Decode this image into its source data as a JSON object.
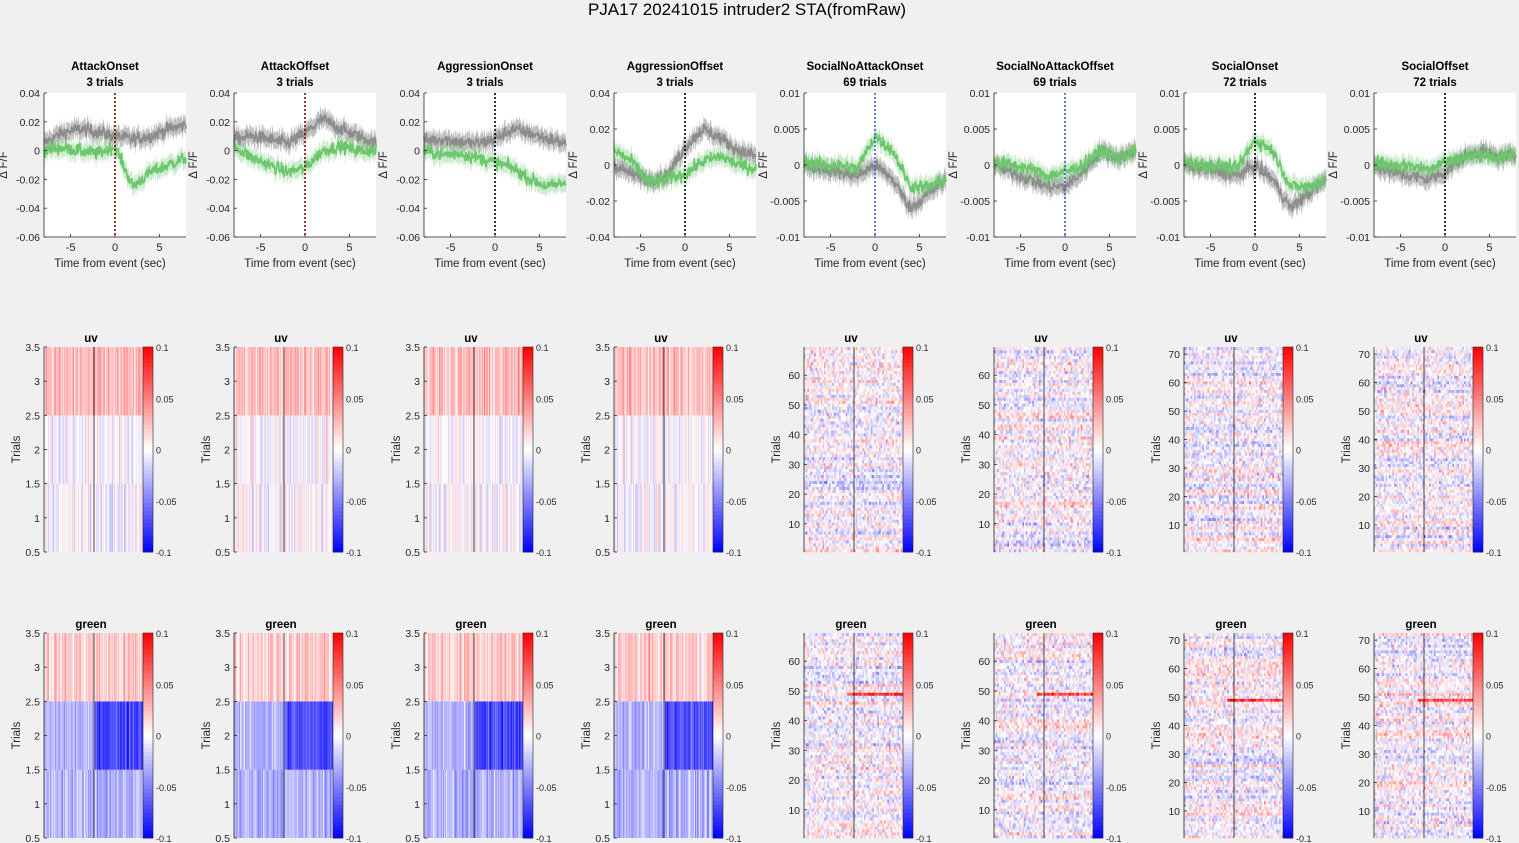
{
  "figure": {
    "suptitle": "PJA17 20241015  intruder2 STA(fromRaw)",
    "colors": {
      "background": "#f0f0f0",
      "axes_bg": "#ffffff",
      "green_trace": "#6cc76c",
      "uv_trace": "#8c8c8c",
      "colormap_low": "#0000ff",
      "colormap_mid": "#ffffff",
      "colormap_high": "#ff0000",
      "event_line_attack": "#8b0000",
      "event_line_social_no_attack": "#3a5bd9",
      "event_line_default": "#000000"
    }
  },
  "chart_data": [
    {
      "type": "line",
      "column": 0,
      "row": "trace",
      "title": "AttackOnset",
      "subtitle": "3 trials",
      "xlabel": "Time from event (sec)",
      "ylabel": "Δ F/F",
      "xlim": [
        -8,
        8
      ],
      "ylim": [
        -0.06,
        0.04
      ],
      "xticks": [
        -5,
        0,
        5
      ],
      "yticks": [
        -0.06,
        -0.04,
        -0.02,
        0,
        0.02,
        0.04
      ],
      "ytick_labels": [
        "-0.06",
        "-0.04",
        "-0.02",
        "0",
        "0.02",
        "0.04"
      ],
      "event_line": {
        "x": 0,
        "style": "dotted",
        "color": "#8b0000"
      },
      "series": [
        {
          "color": "#8c8c8c",
          "x": [
            -8,
            -6,
            -4,
            -2,
            0,
            2,
            4,
            6,
            8
          ],
          "y": [
            0.005,
            0.012,
            0.015,
            0.013,
            0.01,
            0.008,
            0.01,
            0.015,
            0.018
          ]
        },
        {
          "color": "#6cc76c",
          "x": [
            -8,
            -6,
            -4,
            -2,
            0,
            2,
            4,
            6,
            8
          ],
          "y": [
            0.0,
            0.002,
            0.0,
            -0.002,
            0.003,
            -0.025,
            -0.015,
            -0.01,
            -0.005
          ]
        }
      ]
    },
    {
      "type": "line",
      "column": 1,
      "row": "trace",
      "title": "AttackOffset",
      "subtitle": "3 trials",
      "xlabel": "Time from event (sec)",
      "ylabel": "Δ F/F",
      "xlim": [
        -8,
        8
      ],
      "ylim": [
        -0.06,
        0.04
      ],
      "xticks": [
        -5,
        0,
        5
      ],
      "yticks": [
        -0.06,
        -0.04,
        -0.02,
        0,
        0.02,
        0.04
      ],
      "ytick_labels": [
        "-0.06",
        "-0.04",
        "-0.02",
        "0",
        "0.02",
        "0.04"
      ],
      "event_line": {
        "x": 0,
        "style": "dotted",
        "color": "#8b0000"
      },
      "series": [
        {
          "color": "#8c8c8c",
          "x": [
            -8,
            -6,
            -4,
            -2,
            0,
            2,
            4,
            6,
            8
          ],
          "y": [
            0.008,
            0.01,
            0.008,
            0.005,
            0.012,
            0.022,
            0.015,
            0.01,
            0.005
          ]
        },
        {
          "color": "#6cc76c",
          "x": [
            -8,
            -6,
            -4,
            -2,
            0,
            2,
            4,
            6,
            8
          ],
          "y": [
            0.003,
            -0.005,
            -0.01,
            -0.015,
            -0.012,
            0.0,
            0.003,
            0.0,
            0.0
          ]
        }
      ]
    },
    {
      "type": "line",
      "column": 2,
      "row": "trace",
      "title": "AggressionOnset",
      "subtitle": "3 trials",
      "xlabel": "Time from event (sec)",
      "ylabel": "Δ F/F",
      "xlim": [
        -8,
        8
      ],
      "ylim": [
        -0.06,
        0.04
      ],
      "xticks": [
        -5,
        0,
        5
      ],
      "yticks": [
        -0.06,
        -0.04,
        -0.02,
        0,
        0.02,
        0.04
      ],
      "ytick_labels": [
        "-0.06",
        "-0.04",
        "-0.02",
        "0",
        "0.02",
        "0.04"
      ],
      "event_line": {
        "x": 0,
        "style": "dotted",
        "color": "#000000"
      },
      "series": [
        {
          "color": "#8c8c8c",
          "x": [
            -8,
            -6,
            -4,
            -2,
            0,
            2,
            4,
            6,
            8
          ],
          "y": [
            0.007,
            0.008,
            0.006,
            0.005,
            0.008,
            0.015,
            0.012,
            0.008,
            0.005
          ]
        },
        {
          "color": "#6cc76c",
          "x": [
            -8,
            -6,
            -4,
            -2,
            0,
            2,
            4,
            6,
            8
          ],
          "y": [
            0.0,
            -0.003,
            -0.002,
            -0.005,
            -0.008,
            -0.012,
            -0.02,
            -0.025,
            -0.022
          ]
        }
      ]
    },
    {
      "type": "line",
      "column": 3,
      "row": "trace",
      "title": "AggressionOffset",
      "subtitle": "3 trials",
      "xlabel": "Time from event (sec)",
      "ylabel": "Δ F/F",
      "xlim": [
        -8,
        8
      ],
      "ylim": [
        -0.04,
        0.04
      ],
      "xticks": [
        -5,
        0,
        5
      ],
      "yticks": [
        -0.04,
        -0.02,
        0,
        0.02,
        0.04
      ],
      "ytick_labels": [
        "-0.04",
        "-0.02",
        "0",
        "0.02",
        "0.04"
      ],
      "event_line": {
        "x": 0,
        "style": "dotted",
        "color": "#000000"
      },
      "series": [
        {
          "color": "#8c8c8c",
          "x": [
            -8,
            -6,
            -4,
            -2,
            0,
            2,
            4,
            6,
            8
          ],
          "y": [
            0.0,
            -0.005,
            -0.008,
            -0.006,
            0.01,
            0.02,
            0.015,
            0.008,
            0.005
          ]
        },
        {
          "color": "#6cc76c",
          "x": [
            -8,
            -6,
            -4,
            -2,
            0,
            2,
            4,
            6,
            8
          ],
          "y": [
            0.008,
            0.002,
            -0.01,
            -0.008,
            -0.005,
            0.002,
            0.005,
            0.0,
            -0.002
          ]
        }
      ]
    },
    {
      "type": "line",
      "column": 4,
      "row": "trace",
      "title": "SocialNoAttackOnset",
      "subtitle": "69 trials",
      "xlabel": "Time from event (sec)",
      "ylabel": "Δ F/F",
      "xlim": [
        -8,
        8
      ],
      "ylim": [
        -0.01,
        0.01
      ],
      "xticks": [
        -5,
        0,
        5
      ],
      "yticks": [
        -0.01,
        -0.005,
        0,
        0.005,
        0.01
      ],
      "ytick_labels": [
        "-0.01",
        "-0.005",
        "0",
        "0.005",
        "0.01"
      ],
      "event_line": {
        "x": 0,
        "style": "dotted",
        "color": "#3a5bd9"
      },
      "series": [
        {
          "color": "#8c8c8c",
          "x": [
            -8,
            -6,
            -4,
            -2,
            0,
            2,
            4,
            6,
            8
          ],
          "y": [
            0.0,
            -0.0005,
            -0.001,
            -0.0015,
            0.0,
            -0.002,
            -0.006,
            -0.004,
            -0.002
          ]
        },
        {
          "color": "#6cc76c",
          "x": [
            -8,
            -6,
            -4,
            -2,
            0,
            2,
            4,
            6,
            8
          ],
          "y": [
            0.0005,
            0.0,
            0.0,
            -0.0005,
            0.004,
            0.002,
            -0.003,
            -0.003,
            -0.002
          ]
        }
      ]
    },
    {
      "type": "line",
      "column": 5,
      "row": "trace",
      "title": "SocialNoAttackOffset",
      "subtitle": "69 trials",
      "xlabel": "Time from event (sec)",
      "ylabel": "Δ F/F",
      "xlim": [
        -8,
        8
      ],
      "ylim": [
        -0.01,
        0.01
      ],
      "xticks": [
        -5,
        0,
        5
      ],
      "yticks": [
        -0.01,
        -0.005,
        0,
        0.005,
        0.01
      ],
      "ytick_labels": [
        "-0.01",
        "-0.005",
        "0",
        "0.005",
        "0.01"
      ],
      "event_line": {
        "x": 0,
        "style": "dotted",
        "color": "#3a5bd9"
      },
      "series": [
        {
          "color": "#8c8c8c",
          "x": [
            -8,
            -6,
            -4,
            -2,
            0,
            2,
            4,
            6,
            8
          ],
          "y": [
            0.0,
            -0.001,
            -0.002,
            -0.003,
            -0.003,
            -0.001,
            0.002,
            0.001,
            0.002
          ]
        },
        {
          "color": "#6cc76c",
          "x": [
            -8,
            -6,
            -4,
            -2,
            0,
            2,
            4,
            6,
            8
          ],
          "y": [
            0.0005,
            0.0,
            -0.0005,
            -0.0015,
            -0.001,
            0.0,
            0.002,
            0.001,
            0.002
          ]
        }
      ]
    },
    {
      "type": "line",
      "column": 6,
      "row": "trace",
      "title": "SocialOnset",
      "subtitle": "72 trials",
      "xlabel": "Time from event (sec)",
      "ylabel": "Δ F/F",
      "xlim": [
        -8,
        8
      ],
      "ylim": [
        -0.01,
        0.01
      ],
      "xticks": [
        -5,
        0,
        5
      ],
      "yticks": [
        -0.01,
        -0.005,
        0,
        0.005,
        0.01
      ],
      "ytick_labels": [
        "-0.01",
        "-0.005",
        "0",
        "0.005",
        "0.01"
      ],
      "event_line": {
        "x": 0,
        "style": "dotted",
        "color": "#000000"
      },
      "series": [
        {
          "color": "#8c8c8c",
          "x": [
            -8,
            -6,
            -4,
            -2,
            0,
            2,
            4,
            6,
            8
          ],
          "y": [
            0.0,
            -0.0005,
            -0.001,
            -0.0015,
            0.0,
            -0.002,
            -0.006,
            -0.004,
            -0.002
          ]
        },
        {
          "color": "#6cc76c",
          "x": [
            -8,
            -6,
            -4,
            -2,
            0,
            2,
            4,
            6,
            8
          ],
          "y": [
            0.0005,
            0.0,
            0.0,
            -0.0005,
            0.0035,
            0.002,
            -0.003,
            -0.003,
            -0.002
          ]
        }
      ]
    },
    {
      "type": "line",
      "column": 7,
      "row": "trace",
      "title": "SocialOffset",
      "subtitle": "72 trials",
      "xlabel": "Time from event (sec)",
      "ylabel": "Δ F/F",
      "xlim": [
        -8,
        8
      ],
      "ylim": [
        -0.01,
        0.01
      ],
      "xticks": [
        -5,
        0,
        5
      ],
      "yticks": [
        -0.01,
        -0.005,
        0,
        0.005,
        0.01
      ],
      "ytick_labels": [
        "-0.01",
        "-0.005",
        "0",
        "0.005",
        "0.01"
      ],
      "event_line": {
        "x": 0,
        "style": "dotted",
        "color": "#000000"
      },
      "series": [
        {
          "color": "#8c8c8c",
          "x": [
            -8,
            -6,
            -4,
            -2,
            0,
            2,
            4,
            6,
            8
          ],
          "y": [
            0.0,
            -0.001,
            -0.0015,
            -0.002,
            -0.001,
            0.001,
            0.002,
            0.001,
            0.0015
          ]
        },
        {
          "color": "#6cc76c",
          "x": [
            -8,
            -6,
            -4,
            -2,
            0,
            2,
            4,
            6,
            8
          ],
          "y": [
            0.0005,
            0.0,
            0.0,
            -0.0005,
            0.0005,
            0.001,
            0.0015,
            0.001,
            0.0015
          ]
        }
      ]
    },
    {
      "type": "heatmap",
      "title": "uv",
      "row": "uv",
      "columns": 8,
      "ylabel": "Trials",
      "colorbar_range": [
        -0.1,
        0.1
      ],
      "colorbar_ticks": [
        -0.1,
        -0.05,
        0,
        0.05,
        0.1
      ],
      "colorbar_tick_labels": [
        "-0.1",
        "-0.05",
        "0",
        "0.05",
        "0.1"
      ],
      "trial_counts": [
        3,
        3,
        3,
        3,
        69,
        69,
        72,
        72
      ],
      "yticks_3trial": [
        0.5,
        1,
        1.5,
        2,
        2.5,
        3,
        3.5
      ],
      "yticks_3trial_labels": [
        "0.5",
        "1",
        "1.5",
        "2",
        "2.5",
        "3",
        "3.5"
      ],
      "yticks_69trial": [
        10,
        20,
        30,
        40,
        50,
        60
      ],
      "yticks_72trial": [
        10,
        20,
        30,
        40,
        50,
        60,
        70
      ]
    },
    {
      "type": "heatmap",
      "title": "green",
      "row": "green",
      "columns": 8,
      "ylabel": "Trials",
      "colorbar_range": [
        -0.1,
        0.1
      ],
      "colorbar_ticks": [
        -0.1,
        -0.05,
        0,
        0.05,
        0.1
      ],
      "colorbar_tick_labels": [
        "-0.1",
        "-0.05",
        "0",
        "0.05",
        "0.1"
      ],
      "trial_counts": [
        3,
        3,
        3,
        3,
        69,
        69,
        72,
        72
      ],
      "yticks_3trial": [
        0.5,
        1,
        1.5,
        2,
        2.5,
        3,
        3.5
      ],
      "yticks_3trial_labels": [
        "0.5",
        "1",
        "1.5",
        "2",
        "2.5",
        "3",
        "3.5"
      ],
      "yticks_69trial": [
        10,
        20,
        30,
        40,
        50,
        60
      ],
      "yticks_72trial": [
        10,
        20,
        30,
        40,
        50,
        60,
        70
      ]
    }
  ]
}
